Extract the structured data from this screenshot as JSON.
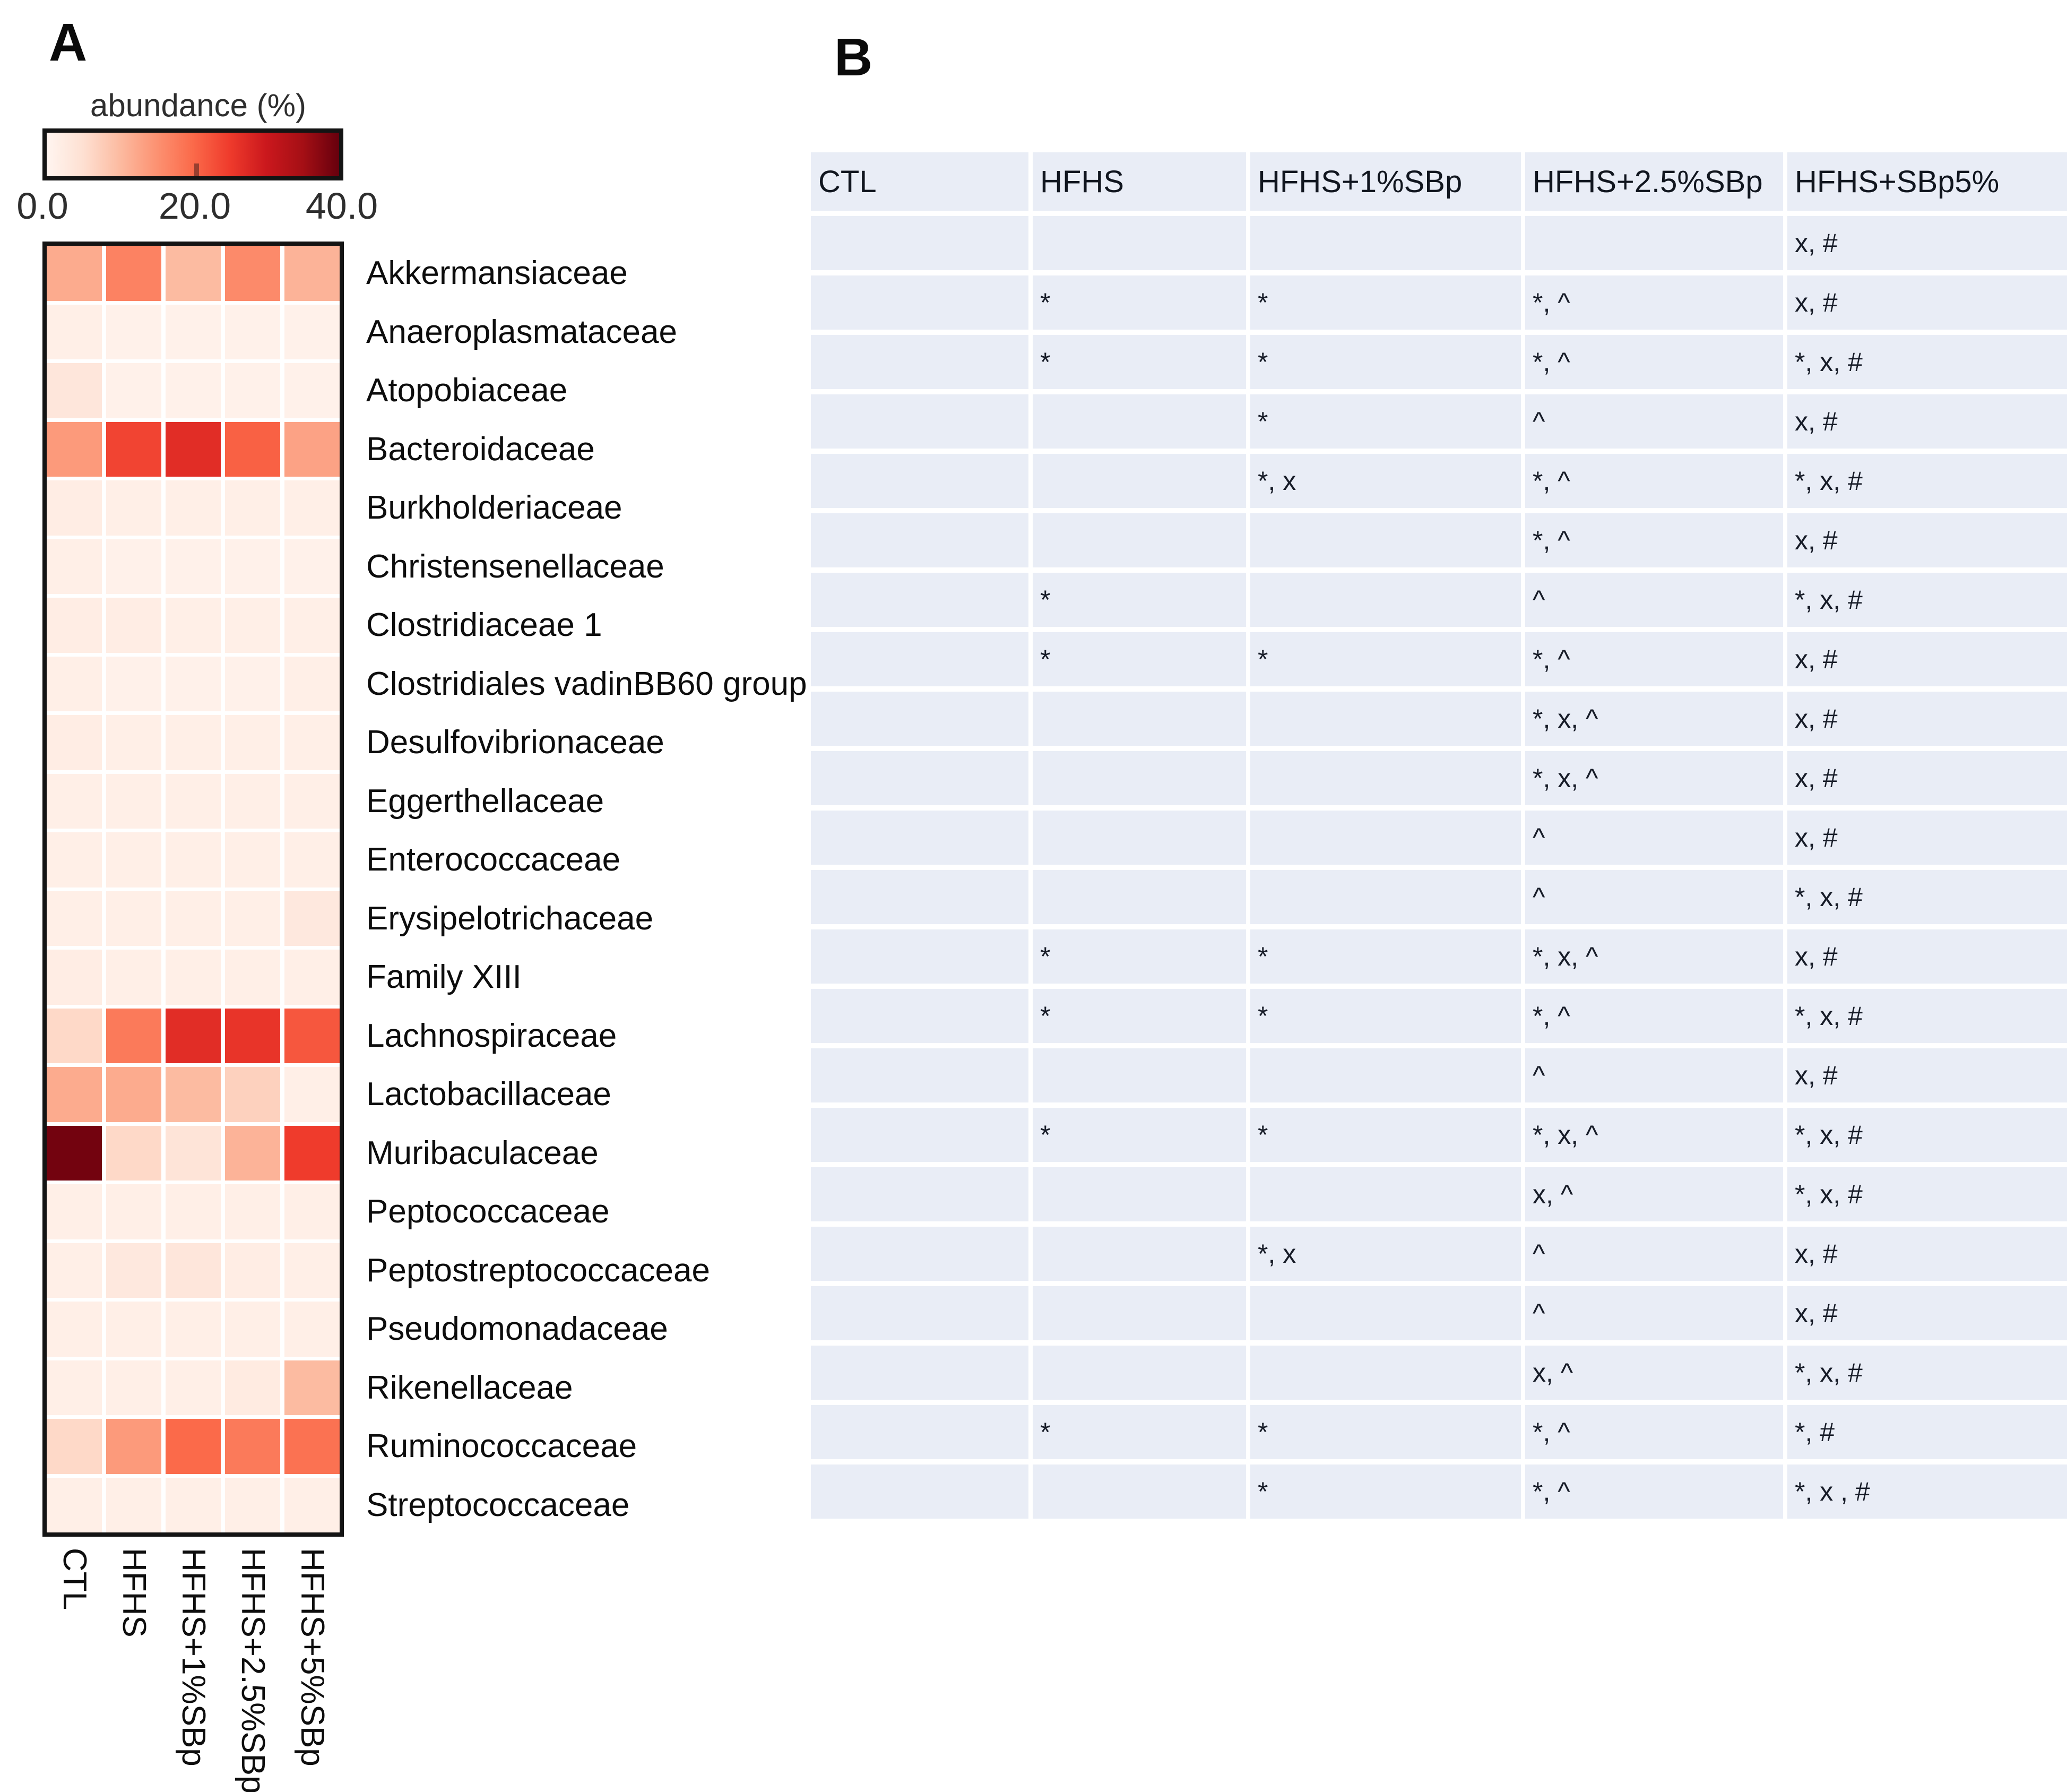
{
  "panel_a_label": "A",
  "panel_b_label": "B",
  "colorbar": {
    "title": "abundance (%)",
    "ticks": [
      "0.0",
      "20.0",
      "40.0"
    ],
    "min": 0,
    "mid": 20,
    "max": 40
  },
  "colors": {
    "table_background": "#e9edf6",
    "heatmap_border": "#141414",
    "reds_scale": [
      "#fff5f0",
      "#fee0d2",
      "#fcbba1",
      "#fc9272",
      "#fb6a4a",
      "#ef3b2c",
      "#cb181d",
      "#a50f15",
      "#67000d"
    ]
  },
  "chart_data": [
    {
      "type": "heatmap",
      "title": "abundance (%)",
      "legend_position": "top-left",
      "value_domain": [
        0,
        40
      ],
      "colorbar_ticks": [
        "0.0",
        "20.0",
        "40.0"
      ],
      "colormap": "white-red-darkred (Reds)",
      "x_categories": [
        "CTL",
        "HFHS",
        "HFHS+1%SBp",
        "HFHS+2.5%SBp",
        "HFHS+5%SBp"
      ],
      "y_categories": [
        "Akkermansiaceae",
        "Anaeroplasmataceae",
        "Atopobiaceae",
        "Bacteroidaceae",
        "Burkholderiaceae",
        "Christensenellaceae",
        "Clostridiaceae 1",
        "Clostridiales vadinBB60 group",
        "Desulfovibrionaceae",
        "Eggerthellaceae",
        "Enterococcaceae",
        "Erysipelotrichaceae",
        "Family XIII",
        "Lachnospiraceae",
        "Lactobacillaceae",
        "Muribaculaceae",
        "Peptococcaceae",
        "Peptostreptococcaceae",
        "Pseudomonadaceae",
        "Rikenellaceae",
        "Ruminococcaceae",
        "Streptococcaceae"
      ],
      "values": [
        [
          12,
          17,
          10,
          16,
          11
        ],
        [
          1.5,
          1,
          1,
          1,
          1
        ],
        [
          3.5,
          1,
          1,
          1,
          1
        ],
        [
          14,
          24,
          27,
          21,
          13
        ],
        [
          2,
          1.5,
          1.5,
          1.5,
          1.5
        ],
        [
          1.5,
          1,
          1,
          1,
          1
        ],
        [
          2,
          2,
          1.5,
          1.5,
          1.5
        ],
        [
          1.5,
          1,
          1,
          1,
          1.5
        ],
        [
          2,
          1.5,
          1.5,
          1.5,
          1.5
        ],
        [
          1.5,
          1.5,
          1.5,
          1.5,
          1.5
        ],
        [
          1.5,
          1.5,
          1.5,
          1.5,
          1.5
        ],
        [
          1.5,
          1.5,
          1.5,
          1.5,
          3
        ],
        [
          2,
          1.5,
          1.5,
          1.5,
          1.5
        ],
        [
          6,
          18,
          27,
          26,
          22
        ],
        [
          12,
          12,
          10,
          7,
          1.5
        ],
        [
          39,
          6,
          4,
          11,
          25
        ],
        [
          1.5,
          1.5,
          1.5,
          1.5,
          1.5
        ],
        [
          1.5,
          3,
          3.5,
          2,
          1.5
        ],
        [
          1.5,
          1.5,
          1.5,
          1.5,
          1.5
        ],
        [
          1.5,
          1.5,
          1.5,
          2.5,
          10
        ],
        [
          6,
          14,
          20,
          18,
          19
        ],
        [
          1.5,
          1.5,
          1.5,
          1.5,
          1.5
        ]
      ]
    },
    {
      "type": "table",
      "columns": [
        "CTL",
        "HFHS",
        "HFHS+1%SBp",
        "HFHS+2.5%SBp",
        "HFHS+SBp5%"
      ],
      "rows": [
        [
          "",
          "",
          "",
          "",
          "x, #"
        ],
        [
          "",
          "*",
          "*",
          "*, ^",
          "x, #"
        ],
        [
          "",
          "*",
          "*",
          "*, ^",
          "*, x, #"
        ],
        [
          "",
          "",
          "*",
          "^",
          "x, #"
        ],
        [
          "",
          "",
          "*, x",
          "*, ^",
          "*, x, #"
        ],
        [
          "",
          "",
          "",
          "*, ^",
          "x, #"
        ],
        [
          "",
          "*",
          "",
          "^",
          "*, x, #"
        ],
        [
          "",
          "*",
          "*",
          "*, ^",
          "x, #"
        ],
        [
          "",
          "",
          "",
          "*, x, ^",
          "x, #"
        ],
        [
          "",
          "",
          "",
          "*, x, ^",
          "x, #"
        ],
        [
          "",
          "",
          "",
          "^",
          "x, #"
        ],
        [
          "",
          "",
          "",
          "^",
          "*, x, #"
        ],
        [
          "",
          "*",
          "*",
          "*, x, ^",
          "x, #"
        ],
        [
          "",
          "*",
          "*",
          "*, ^",
          "*, x, #"
        ],
        [
          "",
          "",
          "",
          "^",
          "x, #"
        ],
        [
          "",
          "*",
          "*",
          "*, x, ^",
          "*, x, #"
        ],
        [
          "",
          "",
          "",
          "x, ^",
          "*, x, #"
        ],
        [
          "",
          "",
          "*, x",
          "^",
          "x, #"
        ],
        [
          "",
          "",
          "",
          "^",
          "x, #"
        ],
        [
          "",
          "",
          "",
          "x, ^",
          "*, x, #"
        ],
        [
          "",
          "*",
          "*",
          "*, ^",
          "*, #"
        ],
        [
          "",
          "",
          "*",
          "*, ^",
          "*, x , #"
        ]
      ]
    }
  ]
}
